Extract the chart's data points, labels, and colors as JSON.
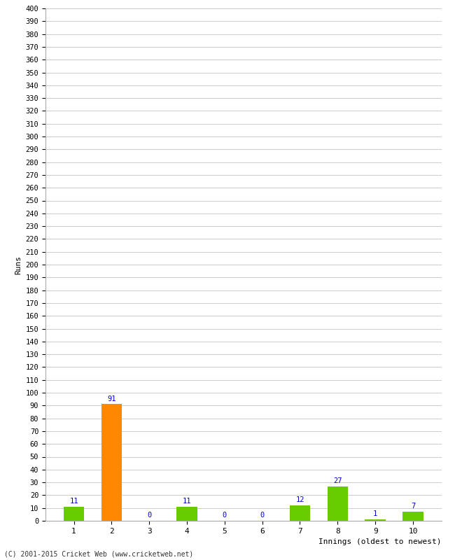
{
  "categories": [
    "1",
    "2",
    "3",
    "4",
    "5",
    "6",
    "7",
    "8",
    "9",
    "10"
  ],
  "values": [
    11,
    91,
    0,
    11,
    0,
    0,
    12,
    27,
    1,
    7
  ],
  "bar_colors": [
    "#66cc00",
    "#ff8800",
    "#66cc00",
    "#66cc00",
    "#66cc00",
    "#66cc00",
    "#66cc00",
    "#66cc00",
    "#66cc00",
    "#66cc00"
  ],
  "xlabel": "Innings (oldest to newest)",
  "ylabel": "Runs",
  "ylim": [
    0,
    400
  ],
  "ytick_step": 10,
  "background_color": "#ffffff",
  "grid_color": "#cccccc",
  "label_color": "#0000cc",
  "footer": "(C) 2001-2015 Cricket Web (www.cricketweb.net)",
  "bar_width": 0.55
}
